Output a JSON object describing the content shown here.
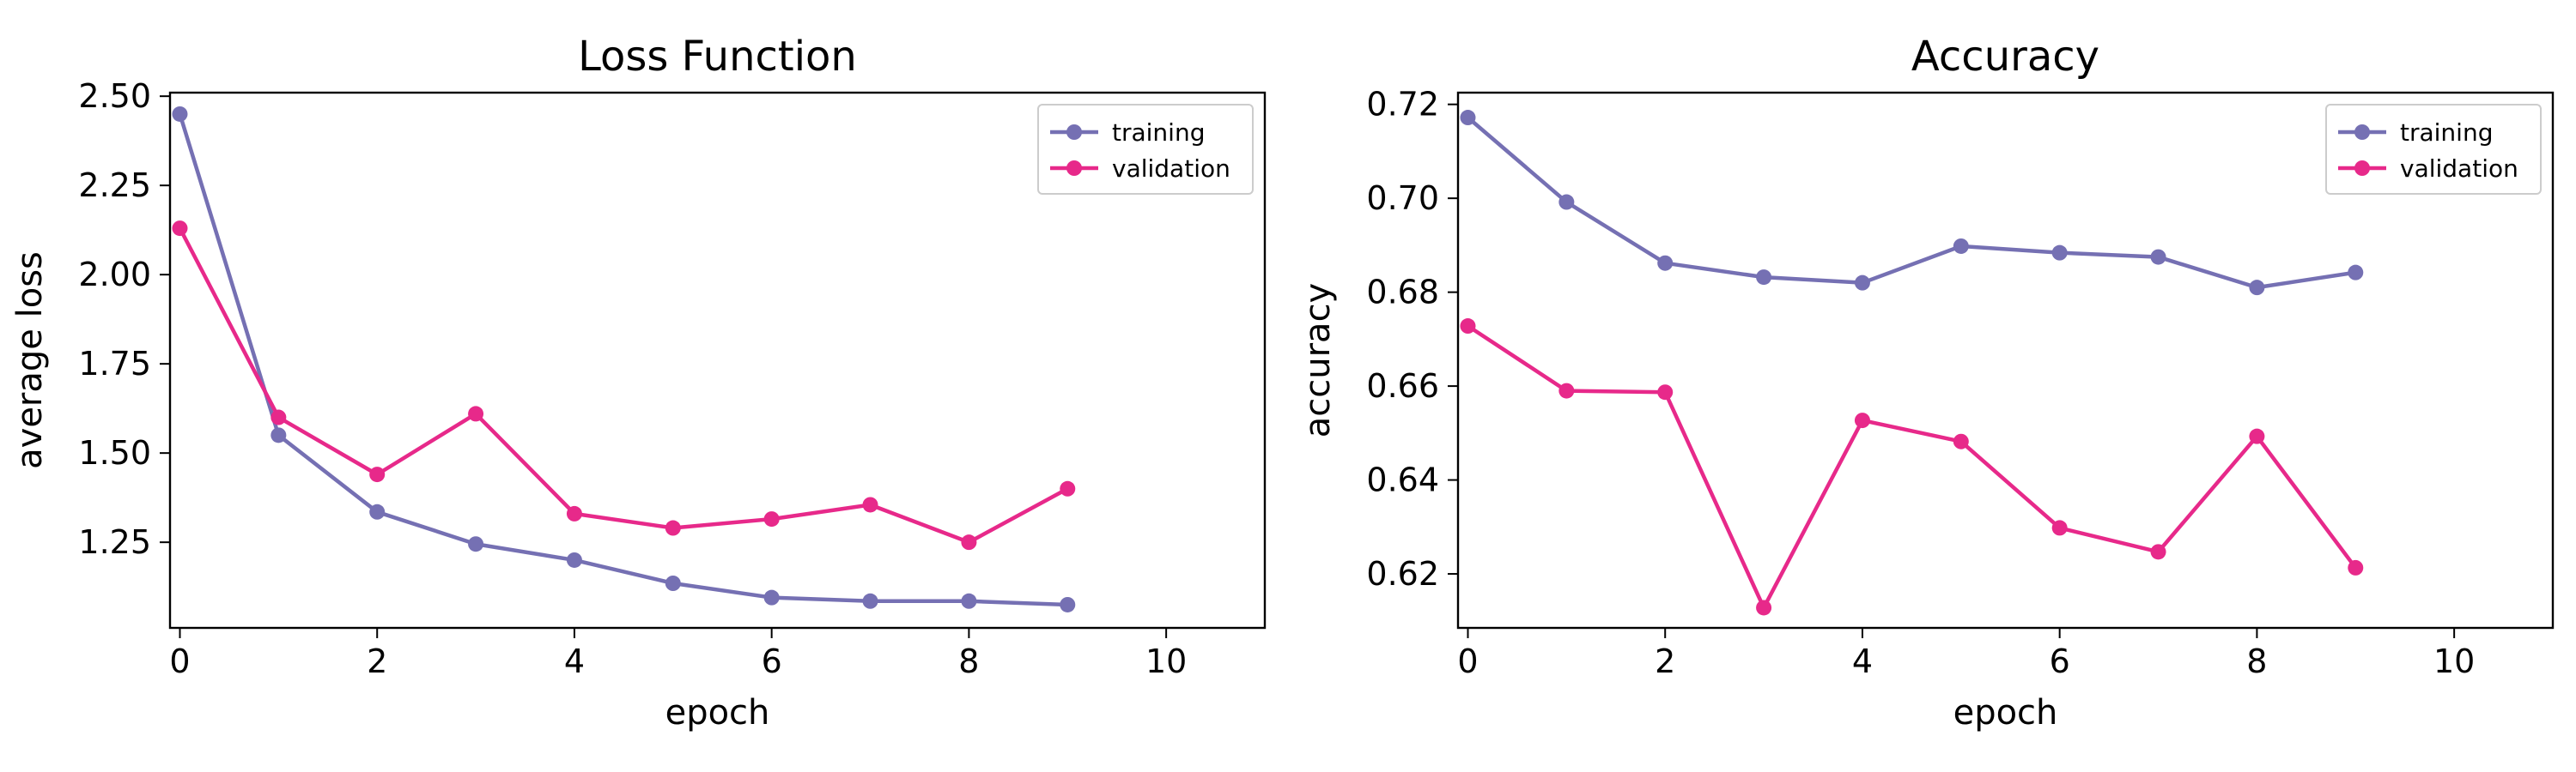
{
  "chart_data": [
    {
      "type": "line",
      "title": "Loss Function",
      "xlabel": "epoch",
      "ylabel": "average loss",
      "xlim": [
        -0.1,
        11
      ],
      "ylim": [
        1.01,
        2.51
      ],
      "xticks": [
        0,
        2,
        4,
        6,
        8,
        10
      ],
      "yticks": [
        1.25,
        1.5,
        1.75,
        2.0,
        2.25,
        2.5
      ],
      "ytick_labels": [
        "1.25",
        "1.50",
        "1.75",
        "2.00",
        "2.25",
        "2.50"
      ],
      "grid": false,
      "legend": "top-right",
      "x": [
        0,
        1,
        2,
        3,
        4,
        5,
        6,
        7,
        8,
        9
      ],
      "series": [
        {
          "name": "training",
          "color": "#7570b3",
          "values": [
            2.45,
            1.55,
            1.335,
            1.245,
            1.2,
            1.135,
            1.095,
            1.085,
            1.085,
            1.075
          ]
        },
        {
          "name": "validation",
          "color": "#e7298a",
          "values": [
            2.13,
            1.6,
            1.44,
            1.61,
            1.33,
            1.29,
            1.315,
            1.355,
            1.25,
            1.4
          ]
        }
      ]
    },
    {
      "type": "line",
      "title": "Accuracy",
      "xlabel": "epoch",
      "ylabel": "accuracy",
      "xlim": [
        -0.1,
        11
      ],
      "ylim": [
        0.6085,
        0.7225
      ],
      "xticks": [
        0,
        2,
        4,
        6,
        8,
        10
      ],
      "yticks": [
        0.62,
        0.64,
        0.66,
        0.68,
        0.7,
        0.72
      ],
      "ytick_labels": [
        "0.62",
        "0.64",
        "0.66",
        "0.68",
        "0.70",
        "0.72"
      ],
      "grid": false,
      "legend": "top-right",
      "x": [
        0,
        1,
        2,
        3,
        4,
        5,
        6,
        7,
        8,
        9
      ],
      "series": [
        {
          "name": "training",
          "color": "#7570b3",
          "values": [
            0.7172,
            0.6992,
            0.6862,
            0.6832,
            0.682,
            0.6898,
            0.6884,
            0.6875,
            0.681,
            0.6842
          ]
        },
        {
          "name": "validation",
          "color": "#e7298a",
          "values": [
            0.6728,
            0.659,
            0.6587,
            0.6128,
            0.6527,
            0.6482,
            0.6298,
            0.6247,
            0.6493,
            0.6213
          ]
        }
      ]
    }
  ]
}
